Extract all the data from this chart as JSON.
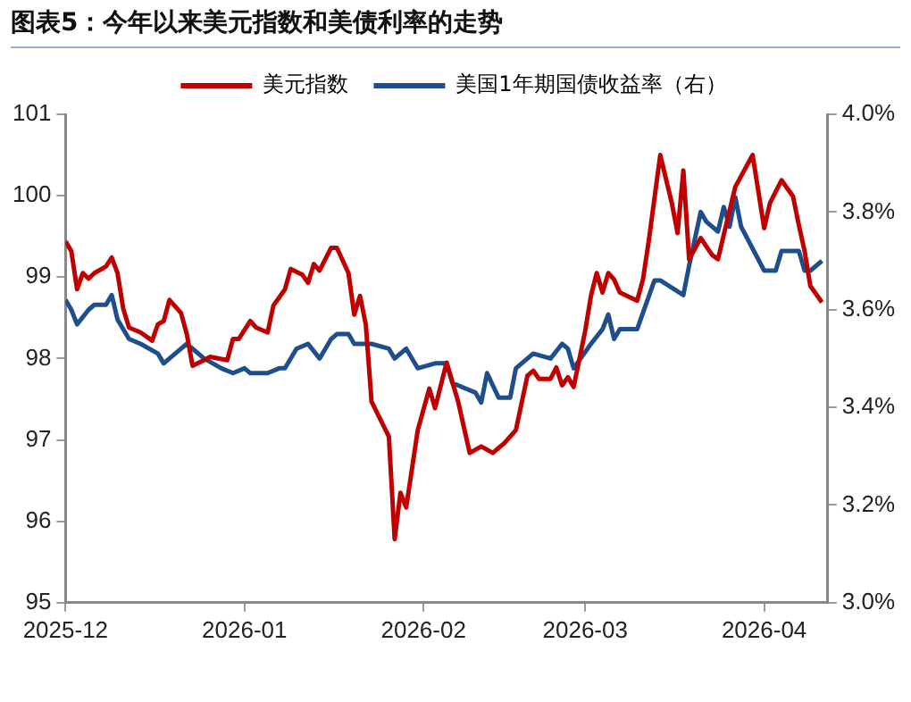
{
  "chart_data": {
    "type": "line",
    "title": "图表5：今年以来美元指数和美债利率的走势",
    "xlim": [
      "2025-12-01",
      "2026-04-12"
    ],
    "xticks": [
      "2025-12",
      "2026-01",
      "2026-02",
      "2026-03",
      "2026-04"
    ],
    "ylim": [
      95,
      101
    ],
    "yticks": [
      95,
      96,
      97,
      98,
      99,
      100,
      101
    ],
    "y2lim": [
      3.0,
      4.0
    ],
    "y2ticks": [
      {
        "value": 3.0,
        "label": "3.0%"
      },
      {
        "value": 3.2,
        "label": "3.2%"
      },
      {
        "value": 3.4,
        "label": "3.4%"
      },
      {
        "value": 3.6,
        "label": "3.6%"
      },
      {
        "value": 3.8,
        "label": "3.8%"
      },
      {
        "value": 4.0,
        "label": "4.0%"
      }
    ],
    "grid": false,
    "legend": "top",
    "marker": "none",
    "line_style": "solid",
    "series": [
      {
        "name": "美元指数",
        "color": "#c00000",
        "x": [
          "2025-12-01",
          "2025-12-02",
          "2025-12-03",
          "2025-12-04",
          "2025-12-05",
          "2025-12-06",
          "2025-12-08",
          "2025-12-09",
          "2025-12-10",
          "2025-12-11",
          "2025-12-12",
          "2025-12-14",
          "2025-12-16",
          "2025-12-17",
          "2025-12-18",
          "2025-12-19",
          "2025-12-21",
          "2025-12-22",
          "2025-12-23",
          "2025-12-25",
          "2025-12-26",
          "2025-12-29",
          "2025-12-30",
          "2025-12-31",
          "2026-01-02",
          "2026-01-03",
          "2026-01-05",
          "2026-01-06",
          "2026-01-08",
          "2026-01-09",
          "2026-01-11",
          "2026-01-12",
          "2026-01-13",
          "2026-01-14",
          "2026-01-16",
          "2026-01-17",
          "2026-01-19",
          "2026-01-20",
          "2026-01-21",
          "2026-01-22",
          "2026-01-23",
          "2026-01-26",
          "2026-01-27",
          "2026-01-28",
          "2026-01-29",
          "2026-01-31",
          "2026-02-02",
          "2026-02-03",
          "2026-02-05",
          "2026-02-07",
          "2026-02-09",
          "2026-02-11",
          "2026-02-13",
          "2026-02-15",
          "2026-02-17",
          "2026-02-19",
          "2026-02-20",
          "2026-02-21",
          "2026-02-23",
          "2026-02-24",
          "2026-02-25",
          "2026-02-26",
          "2026-02-27",
          "2026-03-01",
          "2026-03-02",
          "2026-03-03",
          "2026-03-04",
          "2026-03-05",
          "2026-03-06",
          "2026-03-07",
          "2026-03-10",
          "2026-03-11",
          "2026-03-12",
          "2026-03-14",
          "2026-03-16",
          "2026-03-17",
          "2026-03-18",
          "2026-03-19",
          "2026-03-21",
          "2026-03-23",
          "2026-03-24",
          "2026-03-25",
          "2026-03-27",
          "2026-03-30",
          "2026-04-01",
          "2026-04-02",
          "2026-04-04",
          "2026-04-06",
          "2026-04-07",
          "2026-04-08",
          "2026-04-09",
          "2026-04-11"
        ],
        "values": [
          99.44,
          99.32,
          98.85,
          99.05,
          98.98,
          99.05,
          99.13,
          99.24,
          99.05,
          98.61,
          98.38,
          98.32,
          98.22,
          98.42,
          98.46,
          98.72,
          98.56,
          98.3,
          97.91,
          97.98,
          98.02,
          97.98,
          98.24,
          98.24,
          98.46,
          98.38,
          98.32,
          98.65,
          98.85,
          99.1,
          99.03,
          98.93,
          99.16,
          99.08,
          99.36,
          99.36,
          99.05,
          98.54,
          98.77,
          98.42,
          97.47,
          97.04,
          95.78,
          96.35,
          96.17,
          97.12,
          97.63,
          97.39,
          97.95,
          97.47,
          96.84,
          96.92,
          96.84,
          96.96,
          97.12,
          97.79,
          97.85,
          97.75,
          97.75,
          97.89,
          97.67,
          97.77,
          97.65,
          98.34,
          98.77,
          99.05,
          98.81,
          99.05,
          98.97,
          98.81,
          98.71,
          98.97,
          99.44,
          100.5,
          99.91,
          99.54,
          100.31,
          99.22,
          99.48,
          99.27,
          99.22,
          99.52,
          100.11,
          100.5,
          99.6,
          99.91,
          100.19,
          99.99,
          99.64,
          99.32,
          98.89,
          98.69
        ]
      },
      {
        "name": "美国1年期国债收益率（右）",
        "color": "#1f4e8c",
        "axis": "y2",
        "x": [
          "2025-12-01",
          "2025-12-02",
          "2025-12-03",
          "2025-12-05",
          "2025-12-06",
          "2025-12-08",
          "2025-12-09",
          "2025-12-10",
          "2025-12-12",
          "2025-12-14",
          "2025-12-17",
          "2025-12-18",
          "2025-12-20",
          "2025-12-22",
          "2025-12-25",
          "2025-12-28",
          "2025-12-30",
          "2026-01-01",
          "2026-01-02",
          "2026-01-05",
          "2026-01-07",
          "2026-01-08",
          "2026-01-10",
          "2026-01-12",
          "2026-01-14",
          "2026-01-16",
          "2026-01-17",
          "2026-01-19",
          "2026-01-20",
          "2026-01-23",
          "2026-01-26",
          "2026-01-27",
          "2026-01-29",
          "2026-01-31",
          "2026-02-03",
          "2026-02-05",
          "2026-02-06",
          "2026-02-08",
          "2026-02-10",
          "2026-02-11",
          "2026-02-12",
          "2026-02-14",
          "2026-02-16",
          "2026-02-17",
          "2026-02-20",
          "2026-02-23",
          "2026-02-25",
          "2026-02-26",
          "2026-02-27",
          "2026-03-02",
          "2026-03-04",
          "2026-03-05",
          "2026-03-06",
          "2026-03-07",
          "2026-03-10",
          "2026-03-13",
          "2026-03-14",
          "2026-03-18",
          "2026-03-19",
          "2026-03-21",
          "2026-03-22",
          "2026-03-24",
          "2026-03-25",
          "2026-03-26",
          "2026-03-27",
          "2026-03-28",
          "2026-04-01",
          "2026-04-03",
          "2026-04-04",
          "2026-04-07",
          "2026-04-08",
          "2026-04-09",
          "2026-04-11"
        ],
        "values": [
          3.62,
          3.6,
          3.57,
          3.6,
          3.61,
          3.61,
          3.63,
          3.58,
          3.54,
          3.53,
          3.51,
          3.49,
          3.51,
          3.53,
          3.5,
          3.48,
          3.47,
          3.48,
          3.47,
          3.47,
          3.48,
          3.48,
          3.52,
          3.53,
          3.5,
          3.54,
          3.55,
          3.55,
          3.53,
          3.53,
          3.52,
          3.5,
          3.52,
          3.48,
          3.49,
          3.49,
          3.45,
          3.44,
          3.43,
          3.41,
          3.47,
          3.42,
          3.42,
          3.48,
          3.51,
          3.5,
          3.53,
          3.52,
          3.48,
          3.53,
          3.56,
          3.59,
          3.54,
          3.56,
          3.56,
          3.66,
          3.66,
          3.63,
          3.69,
          3.8,
          3.78,
          3.76,
          3.81,
          3.77,
          3.83,
          3.77,
          3.68,
          3.68,
          3.72,
          3.72,
          3.68,
          3.68,
          3.7
        ]
      }
    ]
  }
}
